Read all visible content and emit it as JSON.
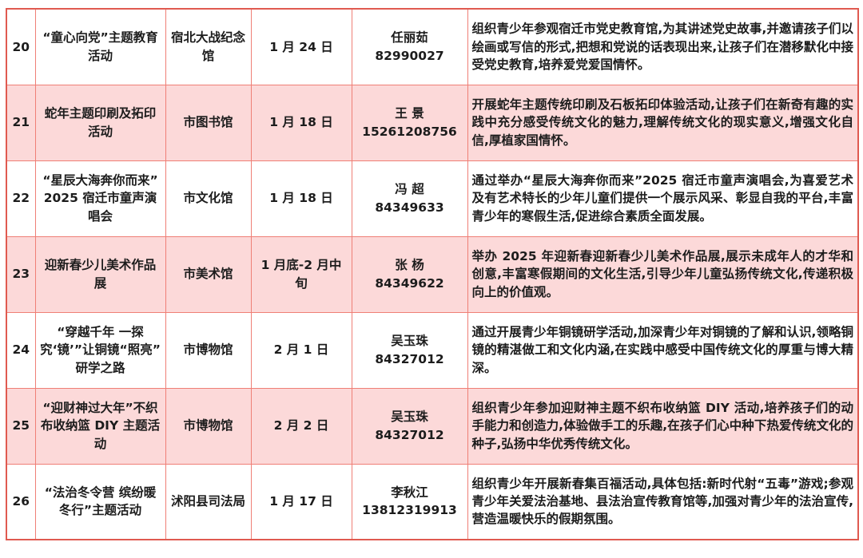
{
  "colors": {
    "grid_border": "#ef7f76",
    "outer_border": "#e05a50",
    "alt_row_bg": "#fcd9d9",
    "text": "#1c1c1c"
  },
  "table": {
    "rows": [
      {
        "no": "20",
        "name": "“童心向党”主题教育活动",
        "venue": "宿北大战纪念馆",
        "date": "1 月 24 日",
        "contact_name": "任丽茹",
        "contact_phone": "82990027",
        "desc": "组织青少年参观宿迁市党史教育馆,为其讲述党史故事,并邀请孩子们以绘画或写信的形式,把想和党说的话表现出来,让孩子们在潜移默化中接受党史教育,培养爱党爱国情怀。"
      },
      {
        "no": "21",
        "name": "蛇年主题印刷及拓印活动",
        "venue": "市图书馆",
        "date": "1 月 18 日",
        "contact_name": "王 景",
        "contact_phone": "15261208756",
        "desc": "开展蛇年主题传统印刷及石板拓印体验活动,让孩子们在新奇有趣的实践中充分感受传统文化的魅力,理解传统文化的现实意义,增强文化自信,厚植家国情怀。"
      },
      {
        "no": "22",
        "name": "“星辰大海奔你而来”2025 宿迁市童声演唱会",
        "venue": "市文化馆",
        "date": "1 月 18 日",
        "contact_name": "冯 超",
        "contact_phone": "84349633",
        "desc": "通过举办“星辰大海奔你而来”2025 宿迁市童声演唱会,为喜爱艺术及有艺术特长的少年儿童们提供一个展示风采、彰显自我的平台,丰富青少年的寒假生活,促进综合素质全面发展。"
      },
      {
        "no": "23",
        "name": "迎新春少儿美术作品展",
        "venue": "市美术馆",
        "date": "1 月底-2 月中旬",
        "contact_name": "张 杨",
        "contact_phone": "84349622",
        "desc": "举办 2025 年迎新春迎新春少儿美术作品展,展示未成年人的才华和创意,丰富寒假期间的文化生活,引导少年儿童弘扬传统文化,传递积极向上的价值观。"
      },
      {
        "no": "24",
        "name": "“穿越千年 一探究‘镜’”让铜镜“照亮”研学之路",
        "venue": "市博物馆",
        "date": "2 月 1 日",
        "contact_name": "吴玉珠",
        "contact_phone": "84327012",
        "desc": "通过开展青少年铜镜研学活动,加深青少年对铜镜的了解和认识,领略铜镜的精湛做工和文化内涵,在实践中感受中国传统文化的厚重与博大精深。"
      },
      {
        "no": "25",
        "name": "“迎财神过大年”不织布收纳篮 DIY 主题活动",
        "venue": "市博物馆",
        "date": "2 月 2 日",
        "contact_name": "吴玉珠",
        "contact_phone": "84327012",
        "desc": "组织青少年参加迎财神主题不织布收纳篮 DIY 活动,培养孩子们的动手能力和创造力,体验做手工的乐趣,在孩子们心中种下热爱传统文化的种子,弘扬中华优秀传统文化。"
      },
      {
        "no": "26",
        "name": "“法治冬令营 缤纷暖冬行”主题活动",
        "venue": "沭阳县司法局",
        "date": "1 月 17 日",
        "contact_name": "李秋江",
        "contact_phone": "13812319913",
        "desc": "组织青少年开展新春集百福活动,具体包括:新时代射“五毒”游戏;参观青少年关爱法治基地、县法治宣传教育馆等,加强对青少年的法治宣传,营造温暖快乐的假期氛围。"
      }
    ]
  }
}
